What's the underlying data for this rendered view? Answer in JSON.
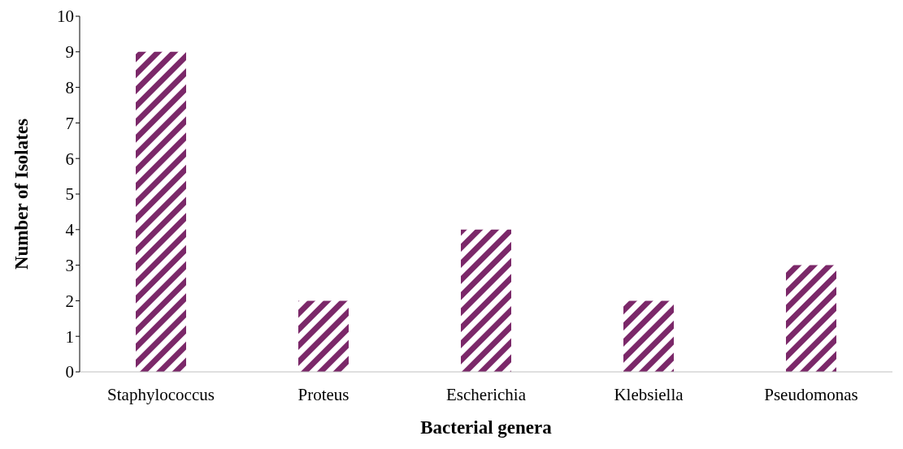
{
  "chart_data": {
    "type": "bar",
    "xlabel": "Bacterial genera",
    "ylabel": "Number of Isolates",
    "categories": [
      "Staphylococcus",
      "Proteus",
      "Escherichia",
      "Klebsiella",
      "Pseudomonas"
    ],
    "values": [
      9,
      2,
      4,
      2,
      3
    ],
    "color": "#7b2869",
    "ylim": [
      0,
      10
    ],
    "yticks": [
      0,
      1,
      2,
      3,
      4,
      5,
      6,
      7,
      8,
      9,
      10
    ],
    "grid": false,
    "legend": false
  }
}
